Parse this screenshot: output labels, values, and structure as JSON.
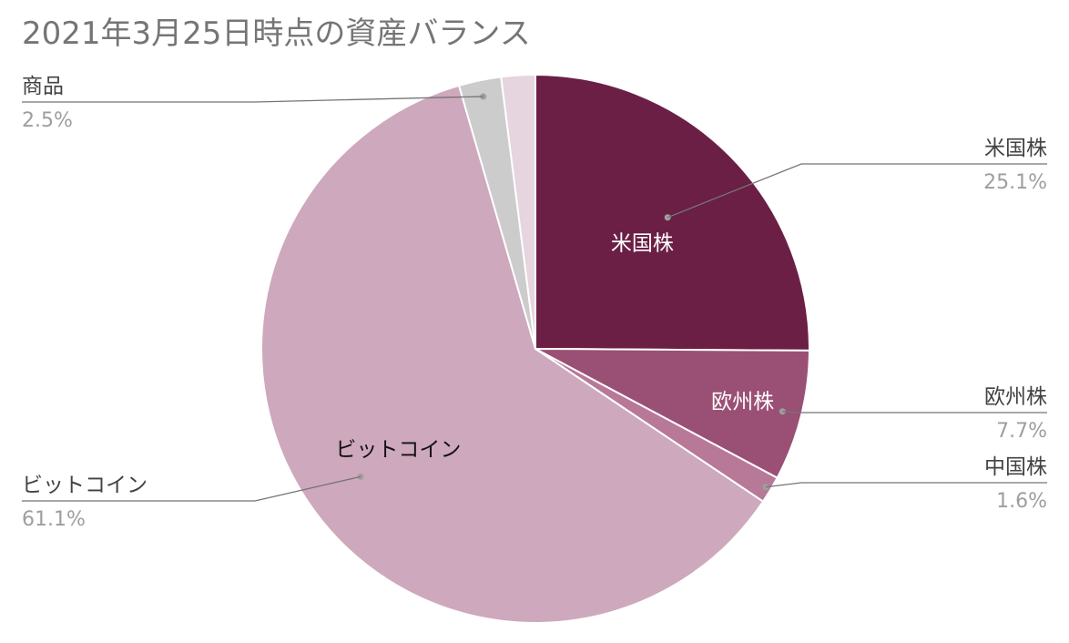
{
  "chart_data": {
    "type": "pie",
    "title": "2021年3月25日時点の資産バランス",
    "slices": [
      {
        "label": "米国株",
        "value": 25.1,
        "percent_label": "25.1%",
        "color": "#6b1f45",
        "inside_label": "米国株",
        "inside_color": "#ffffff"
      },
      {
        "label": "欧州株",
        "value": 7.7,
        "percent_label": "7.7%",
        "color": "#9a5075",
        "inside_label": "欧州株",
        "inside_color": "#ffffff"
      },
      {
        "label": "中国株",
        "value": 1.6,
        "percent_label": "1.6%",
        "color": "#b87898",
        "inside_label": "",
        "inside_color": ""
      },
      {
        "label": "ビットコイン",
        "value": 61.1,
        "percent_label": "61.1%",
        "color": "#cea8bd",
        "inside_label": "ビットコイン",
        "inside_color": "#111111"
      },
      {
        "label": "商品",
        "value": 2.5,
        "percent_label": "2.5%",
        "color": "#cccccc",
        "inside_label": "",
        "inside_color": ""
      },
      {
        "label": "",
        "value": 2.0,
        "percent_label": "",
        "color": "#e6d4de",
        "inside_label": "",
        "inside_color": ""
      }
    ],
    "legend": "none",
    "start_angle": "12 o'clock",
    "direction": "clockwise"
  }
}
